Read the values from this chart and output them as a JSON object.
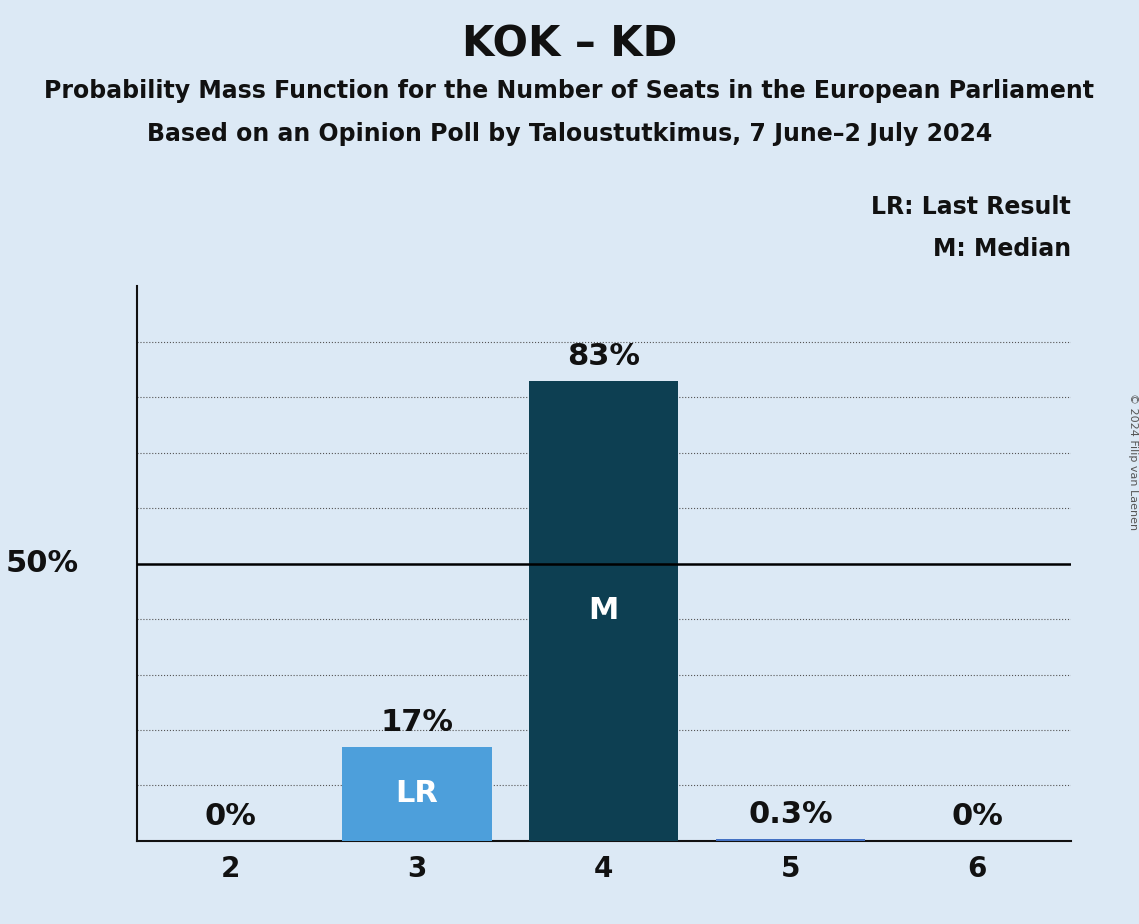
{
  "title": "KOK – KD",
  "subtitle1": "Probability Mass Function for the Number of Seats in the European Parliament",
  "subtitle2": "Based on an Opinion Poll by Taloustutkimus, 7 June–2 July 2024",
  "copyright": "© 2024 Filip van Laenen",
  "seats": [
    2,
    3,
    4,
    5,
    6
  ],
  "probabilities": [
    0.0,
    0.17,
    0.83,
    0.003,
    0.0
  ],
  "bar_colors": [
    "#4472c4",
    "#4d9fdb",
    "#0d3f52",
    "#4472c4",
    "#4472c4"
  ],
  "label_lr_seat": 3,
  "label_m_seat": 4,
  "background_color": "#dce9f5",
  "fifty_pct_line": 0.5,
  "grid_yticks": [
    0.1,
    0.2,
    0.3,
    0.4,
    0.6,
    0.7,
    0.8,
    0.9
  ],
  "pct_labels": [
    "0%",
    "17%",
    "83%",
    "0.3%",
    "0%"
  ],
  "title_fontsize": 30,
  "subtitle_fontsize": 17,
  "tick_fontsize": 20,
  "pct_label_fontsize": 22,
  "bar_label_fontsize": 22,
  "legend_fontsize": 17,
  "fifty_label_fontsize": 22,
  "copyright_fontsize": 8,
  "xlim": [
    1.5,
    6.5
  ],
  "ylim": [
    0.0,
    1.0
  ]
}
